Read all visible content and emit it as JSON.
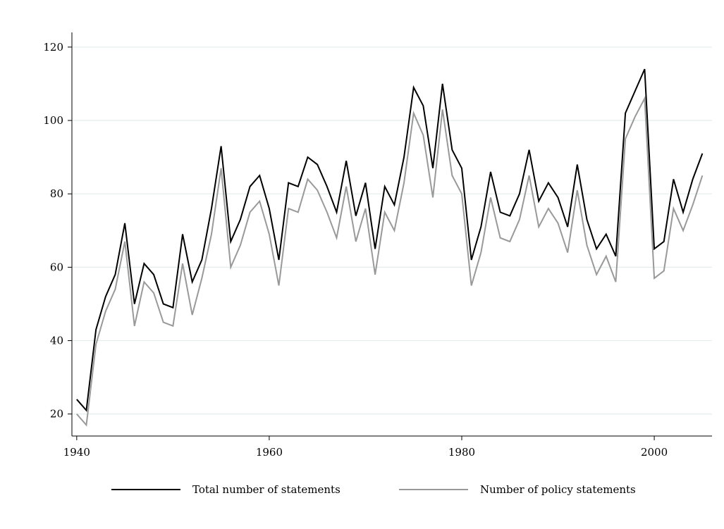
{
  "chart_data": {
    "type": "line",
    "title": "",
    "xlabel": "",
    "ylabel": "",
    "xlim": [
      1939.5,
      2006
    ],
    "ylim": [
      14,
      124
    ],
    "xticks": [
      1940,
      1960,
      1980,
      2000
    ],
    "yticks": [
      20,
      40,
      60,
      80,
      100,
      120
    ],
    "x_tick_labels": [
      "1940",
      "1960",
      "1980",
      "2000"
    ],
    "y_tick_labels": [
      "20",
      "40",
      "60",
      "80",
      "100",
      "120"
    ],
    "grid": "horizontal",
    "legend_position": "bottom",
    "x": [
      1940,
      1941,
      1942,
      1943,
      1944,
      1945,
      1946,
      1947,
      1948,
      1949,
      1950,
      1951,
      1952,
      1953,
      1954,
      1955,
      1956,
      1957,
      1958,
      1959,
      1960,
      1961,
      1962,
      1963,
      1964,
      1965,
      1966,
      1967,
      1968,
      1969,
      1970,
      1971,
      1972,
      1973,
      1974,
      1975,
      1976,
      1977,
      1978,
      1979,
      1980,
      1981,
      1982,
      1983,
      1984,
      1985,
      1986,
      1987,
      1988,
      1989,
      1990,
      1991,
      1992,
      1993,
      1994,
      1995,
      1996,
      1997,
      1998,
      1999,
      2000,
      2001,
      2002,
      2003,
      2004,
      2005
    ],
    "series": [
      {
        "name": "Total number of statements",
        "color": "#000000",
        "values": [
          24,
          21,
          43,
          52,
          58,
          72,
          50,
          61,
          58,
          50,
          49,
          69,
          56,
          62,
          76,
          93,
          67,
          73,
          82,
          85,
          76,
          62,
          83,
          82,
          90,
          88,
          82,
          75,
          89,
          74,
          83,
          65,
          82,
          77,
          90,
          109,
          104,
          87,
          110,
          92,
          87,
          62,
          71,
          86,
          75,
          74,
          80,
          92,
          78,
          83,
          79,
          71,
          88,
          73,
          65,
          69,
          63,
          102,
          108,
          114,
          65,
          67,
          84,
          75,
          84,
          91
        ]
      },
      {
        "name": "Number of policy statements",
        "color": "#999999",
        "values": [
          20,
          17,
          39,
          48,
          54,
          67,
          44,
          56,
          53,
          45,
          44,
          61,
          47,
          57,
          69,
          87,
          60,
          66,
          75,
          78,
          69,
          55,
          76,
          75,
          84,
          81,
          75,
          68,
          82,
          67,
          76,
          58,
          75,
          70,
          83,
          102,
          96,
          79,
          103,
          85,
          80,
          55,
          64,
          79,
          68,
          67,
          73,
          85,
          71,
          76,
          72,
          64,
          81,
          66,
          58,
          63,
          56,
          95,
          101,
          106,
          57,
          59,
          76,
          70,
          77,
          85
        ]
      }
    ]
  }
}
